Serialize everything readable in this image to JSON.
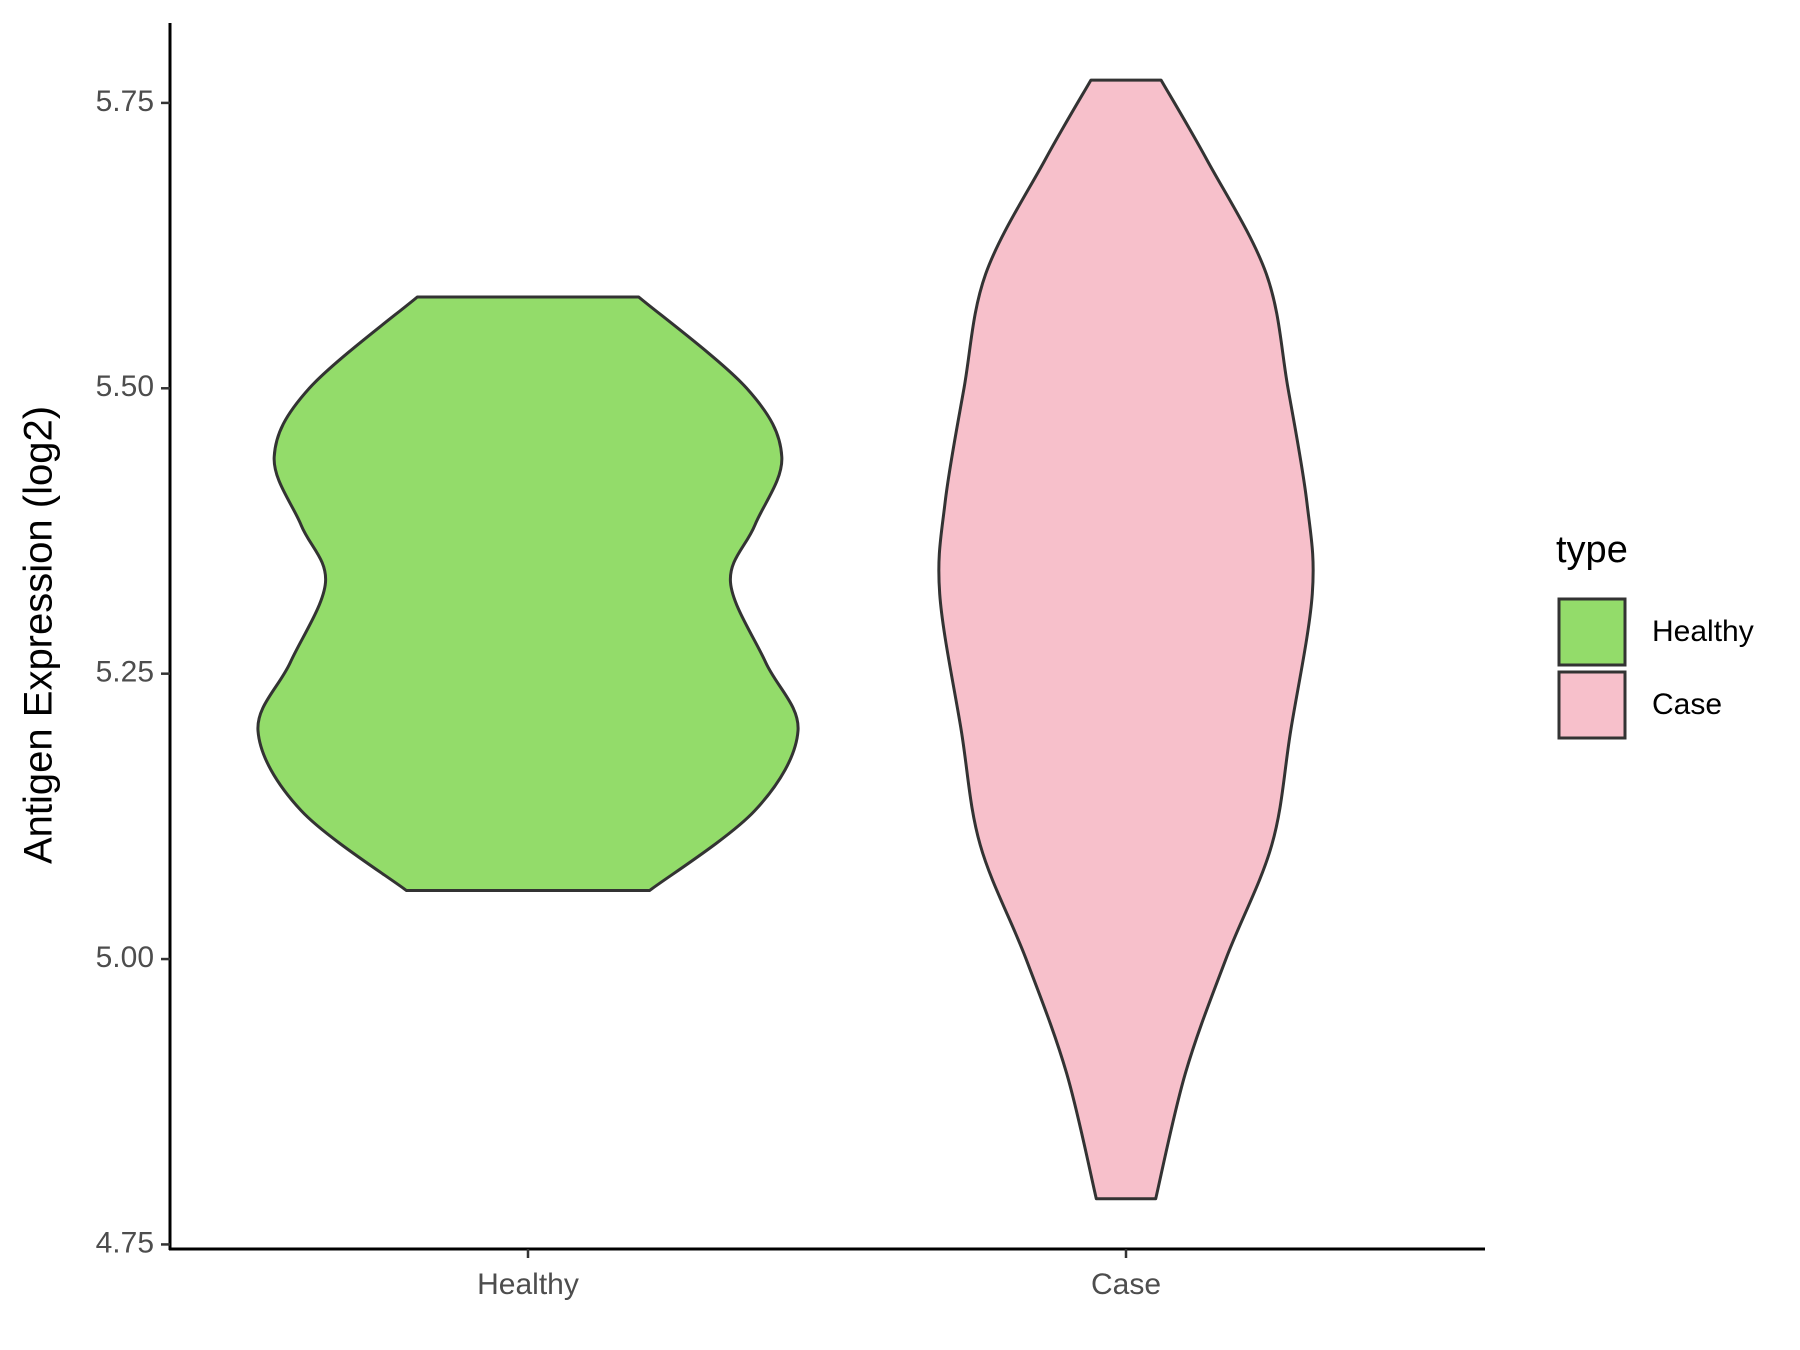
{
  "chart_data": {
    "type": "violin",
    "y_label": "Antigen Expression (log2)",
    "categories": [
      "Healthy",
      "Case"
    ],
    "legend_title": "type",
    "series": [
      {
        "name": "Healthy",
        "color": "#93dc6a",
        "y": [
          5.06,
          5.13,
          5.2,
          5.26,
          5.33,
          5.38,
          5.44,
          5.5,
          5.58
        ],
        "density": [
          0.45,
          0.84,
          1.0,
          0.88,
          0.75,
          0.84,
          0.94,
          0.81,
          0.41
        ]
      },
      {
        "name": "Case",
        "color": "#f7c0cb",
        "y": [
          4.79,
          4.9,
          5.0,
          5.1,
          5.2,
          5.32,
          5.4,
          5.5,
          5.6,
          5.7,
          5.77
        ],
        "density": [
          0.11,
          0.22,
          0.37,
          0.54,
          0.61,
          0.69,
          0.67,
          0.6,
          0.52,
          0.3,
          0.13
        ]
      }
    ],
    "ylim": [
      4.746,
      5.82
    ],
    "yticks": [
      4.75,
      {
        "value": 5.0,
        "label": "5.00"
      },
      5.25,
      {
        "value": 5.5,
        "label": "5.50"
      },
      5.75
    ],
    "legend": "right"
  }
}
